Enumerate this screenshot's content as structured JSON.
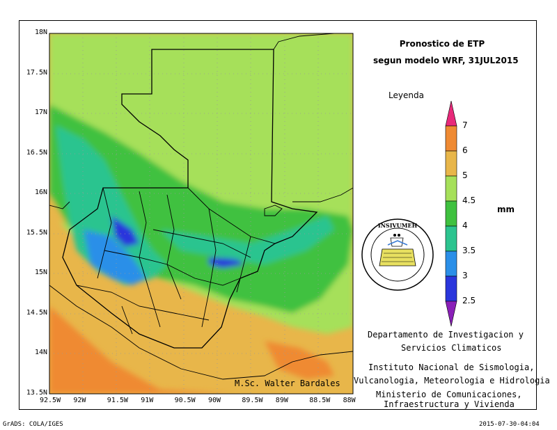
{
  "title_line1": "Pronostico de ETP",
  "title_line2": "segun modelo WRF, 31JUL2015",
  "legend_title": "Leyenda",
  "unit": "mm",
  "colorbar": {
    "labels": [
      "7",
      "6",
      "5",
      "4.5",
      "4",
      "3.5",
      "3",
      "2.5"
    ],
    "colors": [
      "#e8297a",
      "#ef8a33",
      "#e8b64a",
      "#a6e05a",
      "#3fc13f",
      "#2cc48f",
      "#2b8fe8",
      "#2a36dc",
      "#8a1fb8"
    ]
  },
  "institution": {
    "line1": "Departamento de Investigacion y",
    "line2": "Servicios Climaticos",
    "line3": "Instituto Nacional de Sismologia,",
    "line4": "Vulcanologia, Meteorologia e Hidrologia",
    "line5": "Ministerio de Comunicaciones,",
    "line6": "Infraestructura y Vivienda"
  },
  "credit": "M.Sc. Walter Bardales",
  "logo_text": "INSIVUMEH",
  "footer_left": "GrADS: COLA/IGES",
  "footer_right": "2015-07-30-04:04",
  "axes": {
    "lat_labels": [
      "18N",
      "17.5N",
      "17N",
      "16.5N",
      "16N",
      "15.5N",
      "15N",
      "14.5N",
      "14N",
      "13.5N"
    ],
    "lon_labels": [
      "92.5W",
      "92W",
      "91.5W",
      "91W",
      "90.5W",
      "90W",
      "89.5W",
      "89W",
      "88.5W",
      "88W"
    ]
  }
}
